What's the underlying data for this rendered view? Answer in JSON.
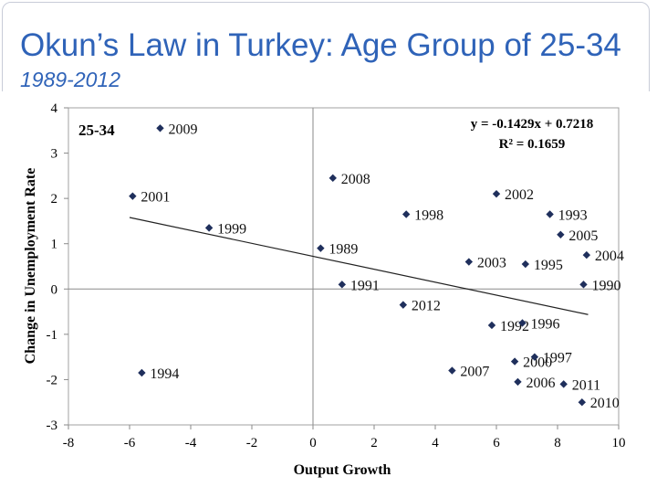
{
  "slide": {
    "title": "Okun’s Law in Turkey: Age Group of 25-34",
    "subtitle": "1989-2012"
  },
  "chart_data": {
    "type": "scatter",
    "title": "",
    "panel_label": "25-34",
    "xlabel": "Output Growth",
    "ylabel": "Change in Unemployment Rate",
    "xlim": [
      -8,
      10
    ],
    "ylim": [
      -3,
      4
    ],
    "xticks": [
      "-8",
      "-6",
      "-4",
      "-2",
      "0",
      "2",
      "4",
      "6",
      "8",
      "10"
    ],
    "yticks": [
      "-3",
      "-2",
      "-1",
      "0",
      "1",
      "2",
      "3",
      "4"
    ],
    "marker_color": "#1f2f5c",
    "trendline": {
      "equation": "y = -0.1429x + 0.7218",
      "r_squared": "R² = 0.1659",
      "slope": -0.1429,
      "intercept": 0.7218,
      "x_range": [
        -6,
        9
      ]
    },
    "points": [
      {
        "label": "2009",
        "x": -5,
        "y": 3.55
      },
      {
        "label": "2001",
        "x": -5.9,
        "y": 2.05
      },
      {
        "label": "1999",
        "x": -3.4,
        "y": 1.35
      },
      {
        "label": "1994",
        "x": -5.6,
        "y": -1.85
      },
      {
        "label": "2008",
        "x": 0.65,
        "y": 2.45
      },
      {
        "label": "1989",
        "x": 0.25,
        "y": 0.9
      },
      {
        "label": "1991",
        "x": 0.95,
        "y": 0.1
      },
      {
        "label": "1998",
        "x": 3.05,
        "y": 1.65
      },
      {
        "label": "2012",
        "x": 2.95,
        "y": -0.35
      },
      {
        "label": "2002",
        "x": 6,
        "y": 2.1
      },
      {
        "label": "1993",
        "x": 7.75,
        "y": 1.65
      },
      {
        "label": "2005",
        "x": 8.1,
        "y": 1.2
      },
      {
        "label": "2004",
        "x": 8.95,
        "y": 0.75
      },
      {
        "label": "2003",
        "x": 5.1,
        "y": 0.6
      },
      {
        "label": "1995",
        "x": 6.95,
        "y": 0.55
      },
      {
        "label": "1990",
        "x": 8.85,
        "y": 0.1
      },
      {
        "label": "1992",
        "x": 5.85,
        "y": -0.8
      },
      {
        "label": "1996",
        "x": 6.85,
        "y": -0.75
      },
      {
        "label": "2007",
        "x": 4.55,
        "y": -1.8
      },
      {
        "label": "2000",
        "x": 6.6,
        "y": -1.6
      },
      {
        "label": "1997",
        "x": 7.25,
        "y": -1.5
      },
      {
        "label": "2006",
        "x": 6.7,
        "y": -2.05
      },
      {
        "label": "2011",
        "x": 8.2,
        "y": -2.1
      },
      {
        "label": "2010",
        "x": 8.8,
        "y": -2.5
      }
    ]
  }
}
